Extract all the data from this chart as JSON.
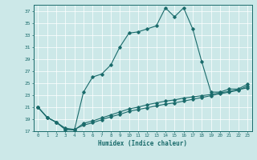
{
  "title": "",
  "xlabel": "Humidex (Indice chaleur)",
  "background_color": "#cce8e8",
  "line_color": "#1a6b6b",
  "grid_color": "#ffffff",
  "xlim": [
    -0.5,
    23.5
  ],
  "ylim": [
    17,
    38
  ],
  "yticks": [
    17,
    19,
    21,
    23,
    25,
    27,
    29,
    31,
    33,
    35,
    37
  ],
  "xticks": [
    0,
    1,
    2,
    3,
    4,
    5,
    6,
    7,
    8,
    9,
    10,
    11,
    12,
    13,
    14,
    15,
    16,
    17,
    18,
    19,
    20,
    21,
    22,
    23
  ],
  "curve1_x": [
    0,
    1,
    2,
    3,
    4,
    5,
    6,
    7,
    8,
    9,
    10,
    11,
    12,
    13,
    14,
    15,
    16,
    17,
    18,
    19,
    20,
    21,
    22,
    23
  ],
  "curve1_y": [
    21.0,
    19.3,
    18.5,
    17.3,
    17.2,
    23.5,
    26.0,
    26.5,
    28.0,
    31.0,
    33.3,
    33.5,
    34.0,
    34.5,
    37.5,
    36.0,
    37.5,
    34.0,
    28.5,
    23.5,
    23.5,
    24.0,
    24.0,
    24.8
  ],
  "curve2_x": [
    0,
    1,
    2,
    3,
    4,
    5,
    6,
    7,
    8,
    9,
    10,
    11,
    12,
    13,
    14,
    15,
    16,
    17,
    18,
    19,
    20,
    21,
    22,
    23
  ],
  "curve2_y": [
    21.0,
    19.3,
    18.5,
    17.3,
    17.2,
    18.3,
    18.7,
    19.2,
    19.7,
    20.2,
    20.7,
    21.0,
    21.4,
    21.7,
    22.0,
    22.2,
    22.5,
    22.7,
    22.9,
    23.1,
    23.4,
    23.6,
    23.9,
    24.2
  ],
  "curve3_x": [
    0,
    1,
    2,
    3,
    4,
    5,
    6,
    7,
    8,
    9,
    10,
    11,
    12,
    13,
    14,
    15,
    16,
    17,
    18,
    19,
    20,
    21,
    22,
    23
  ],
  "curve3_y": [
    21.0,
    19.3,
    18.5,
    17.5,
    17.3,
    18.0,
    18.4,
    18.9,
    19.4,
    19.8,
    20.3,
    20.6,
    20.9,
    21.2,
    21.5,
    21.7,
    22.0,
    22.3,
    22.6,
    22.9,
    23.2,
    23.5,
    23.8,
    24.5
  ]
}
